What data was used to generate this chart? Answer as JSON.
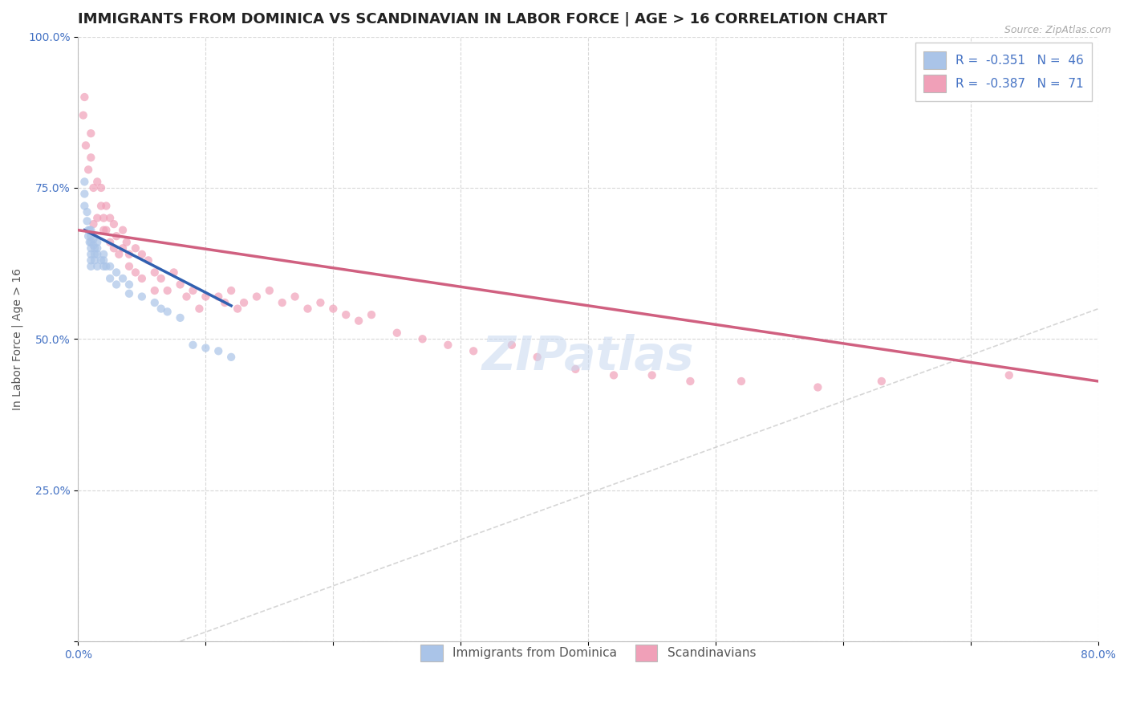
{
  "title": "IMMIGRANTS FROM DOMINICA VS SCANDINAVIAN IN LABOR FORCE | AGE > 16 CORRELATION CHART",
  "source_text": "Source: ZipAtlas.com",
  "ylabel": "In Labor Force | Age > 16",
  "xlim": [
    0.0,
    0.8
  ],
  "ylim": [
    0.0,
    1.0
  ],
  "xtick_positions": [
    0.0,
    0.1,
    0.2,
    0.3,
    0.4,
    0.5,
    0.6,
    0.7,
    0.8
  ],
  "xtick_labels": [
    "0.0%",
    "",
    "",
    "",
    "",
    "",
    "",
    "",
    "80.0%"
  ],
  "ytick_positions": [
    0.0,
    0.25,
    0.5,
    0.75,
    1.0
  ],
  "ytick_labels": [
    "",
    "25.0%",
    "50.0%",
    "75.0%",
    "100.0%"
  ],
  "blue_color": "#aac4e8",
  "pink_color": "#f0a0b8",
  "blue_line_color": "#3060b0",
  "pink_line_color": "#d06080",
  "dot_size": 55,
  "dot_alpha": 0.7,
  "blue_dots_x": [
    0.005,
    0.005,
    0.005,
    0.007,
    0.007,
    0.008,
    0.008,
    0.009,
    0.009,
    0.01,
    0.01,
    0.01,
    0.01,
    0.01,
    0.01,
    0.01,
    0.012,
    0.012,
    0.013,
    0.013,
    0.013,
    0.015,
    0.015,
    0.015,
    0.015,
    0.018,
    0.02,
    0.02,
    0.02,
    0.022,
    0.025,
    0.025,
    0.03,
    0.03,
    0.035,
    0.04,
    0.04,
    0.05,
    0.06,
    0.065,
    0.07,
    0.08,
    0.09,
    0.1,
    0.11,
    0.12
  ],
  "blue_dots_y": [
    0.76,
    0.74,
    0.72,
    0.71,
    0.695,
    0.68,
    0.67,
    0.68,
    0.66,
    0.68,
    0.67,
    0.66,
    0.65,
    0.64,
    0.63,
    0.62,
    0.665,
    0.655,
    0.65,
    0.64,
    0.63,
    0.66,
    0.65,
    0.64,
    0.62,
    0.63,
    0.64,
    0.63,
    0.62,
    0.62,
    0.62,
    0.6,
    0.61,
    0.59,
    0.6,
    0.59,
    0.575,
    0.57,
    0.56,
    0.55,
    0.545,
    0.535,
    0.49,
    0.485,
    0.48,
    0.47
  ],
  "pink_dots_x": [
    0.004,
    0.005,
    0.006,
    0.008,
    0.01,
    0.01,
    0.012,
    0.012,
    0.015,
    0.015,
    0.018,
    0.018,
    0.02,
    0.02,
    0.022,
    0.022,
    0.025,
    0.025,
    0.028,
    0.028,
    0.03,
    0.032,
    0.035,
    0.035,
    0.038,
    0.04,
    0.04,
    0.045,
    0.045,
    0.05,
    0.05,
    0.055,
    0.06,
    0.06,
    0.065,
    0.07,
    0.075,
    0.08,
    0.085,
    0.09,
    0.095,
    0.1,
    0.11,
    0.115,
    0.12,
    0.125,
    0.13,
    0.14,
    0.15,
    0.16,
    0.17,
    0.18,
    0.19,
    0.2,
    0.21,
    0.22,
    0.23,
    0.25,
    0.27,
    0.29,
    0.31,
    0.34,
    0.36,
    0.39,
    0.42,
    0.45,
    0.48,
    0.52,
    0.58,
    0.63,
    0.73
  ],
  "pink_dots_y": [
    0.87,
    0.9,
    0.82,
    0.78,
    0.8,
    0.84,
    0.75,
    0.69,
    0.76,
    0.7,
    0.75,
    0.72,
    0.7,
    0.68,
    0.72,
    0.68,
    0.7,
    0.66,
    0.69,
    0.65,
    0.67,
    0.64,
    0.68,
    0.65,
    0.66,
    0.64,
    0.62,
    0.65,
    0.61,
    0.64,
    0.6,
    0.63,
    0.61,
    0.58,
    0.6,
    0.58,
    0.61,
    0.59,
    0.57,
    0.58,
    0.55,
    0.57,
    0.57,
    0.56,
    0.58,
    0.55,
    0.56,
    0.57,
    0.58,
    0.56,
    0.57,
    0.55,
    0.56,
    0.55,
    0.54,
    0.53,
    0.54,
    0.51,
    0.5,
    0.49,
    0.48,
    0.49,
    0.47,
    0.45,
    0.44,
    0.44,
    0.43,
    0.43,
    0.42,
    0.43,
    0.44
  ],
  "pink_trend_start_x": 0.0,
  "pink_trend_end_x": 0.8,
  "pink_trend_start_y": 0.68,
  "pink_trend_end_y": 0.43,
  "blue_trend_start_x": 0.005,
  "blue_trend_end_x": 0.12,
  "blue_trend_start_y": 0.68,
  "blue_trend_end_y": 0.555,
  "ref_line_start_x": 0.08,
  "ref_line_end_x": 0.8,
  "ref_line_start_y": 0.0,
  "ref_line_end_y": 0.55,
  "background_color": "#ffffff",
  "grid_color": "#d8d8d8",
  "title_fontsize": 13,
  "axis_label_fontsize": 10,
  "tick_fontsize": 10,
  "legend_fontsize": 11
}
